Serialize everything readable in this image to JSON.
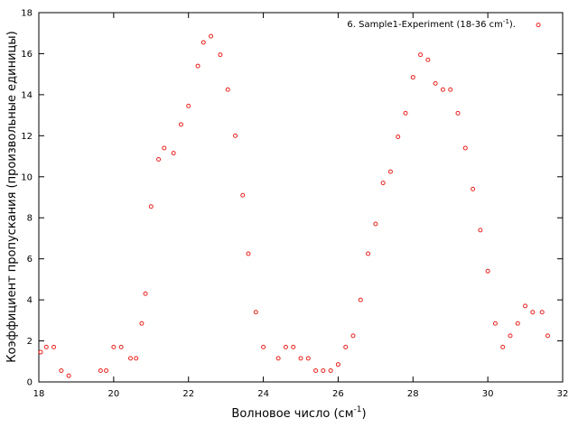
{
  "chart_data": {
    "type": "scatter",
    "xlabel_main": "Волновое число (см",
    "xlabel_sup": "-1",
    "xlabel_end": ")",
    "ylabel": "Коэффициент пропускания (произвольные единицы)",
    "xlim": [
      18,
      32
    ],
    "ylim": [
      0,
      18
    ],
    "x_ticks": [
      18,
      20,
      22,
      24,
      26,
      28,
      30,
      32
    ],
    "y_ticks": [
      0,
      2,
      4,
      6,
      8,
      10,
      12,
      14,
      16,
      18
    ],
    "grid": false,
    "legend_position": "top-right",
    "marker_color": "#e8221d",
    "series": [
      {
        "name_main": "6. Sample1-Experiment (18-36 cm",
        "name_sup": "-1",
        "name_end": ").",
        "x": [
          18.05,
          18.2,
          18.4,
          18.6,
          18.8,
          19.65,
          19.8,
          20.0,
          20.2,
          20.45,
          20.6,
          20.75,
          20.85,
          21.0,
          21.2,
          21.35,
          21.6,
          21.8,
          22.0,
          22.25,
          22.4,
          22.6,
          22.85,
          23.05,
          23.25,
          23.45,
          23.6,
          23.8,
          24.0,
          24.4,
          24.6,
          24.8,
          25.0,
          25.2,
          25.4,
          25.6,
          25.8,
          26.0,
          26.2,
          26.4,
          26.6,
          26.8,
          27.0,
          27.2,
          27.4,
          27.6,
          27.8,
          28.0,
          28.2,
          28.4,
          28.6,
          28.8,
          29.0,
          29.2,
          29.4,
          29.6,
          29.8,
          30.0,
          30.2,
          30.4,
          30.6,
          30.8,
          31.0,
          31.2,
          31.35,
          31.45,
          31.6
        ],
        "y": [
          1.45,
          1.7,
          1.7,
          0.55,
          0.3,
          0.55,
          0.55,
          1.7,
          1.7,
          1.15,
          1.15,
          2.85,
          4.3,
          8.55,
          10.85,
          11.4,
          11.15,
          12.55,
          13.45,
          15.4,
          16.55,
          16.85,
          15.95,
          14.25,
          12.0,
          9.1,
          6.25,
          3.4,
          1.7,
          1.15,
          1.7,
          1.7,
          1.15,
          1.15,
          0.55,
          0.55,
          0.55,
          0.85,
          1.7,
          2.25,
          4.0,
          6.25,
          7.7,
          9.7,
          10.25,
          11.95,
          13.1,
          14.85,
          15.95,
          15.7,
          14.55,
          14.25,
          14.25,
          13.1,
          11.4,
          9.4,
          7.4,
          5.4,
          2.85,
          1.7,
          2.25,
          2.85,
          3.7,
          3.4,
          17.4,
          3.4,
          2.25
        ]
      }
    ]
  }
}
